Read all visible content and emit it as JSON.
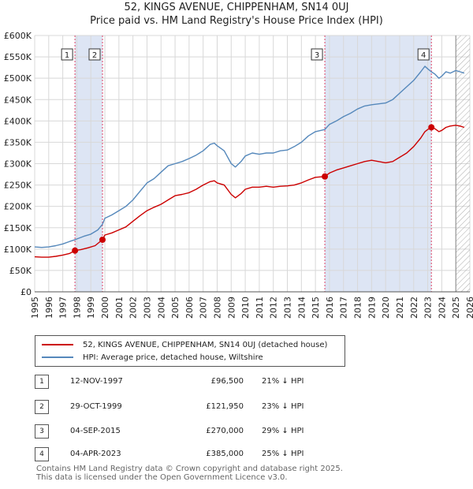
{
  "title_line1": "52, KINGS AVENUE, CHIPPENHAM, SN14 0UJ",
  "title_line2": "Price paid vs. HM Land Registry's House Price Index (HPI)",
  "colors": {
    "price_line": "#cc0000",
    "hpi_line": "#5588bb",
    "shade": "#dde5f4",
    "marker_line": "#dd4466",
    "hatch": "#aaaaaa"
  },
  "legend": {
    "price_label": "52, KINGS AVENUE, CHIPPENHAM, SN14 0UJ (detached house)",
    "hpi_label": "HPI: Average price, detached house, Wiltshire"
  },
  "transactions": [
    {
      "num": "1",
      "date": "12-NOV-1997",
      "price": "£96,500",
      "hpi": "21% ↓ HPI"
    },
    {
      "num": "2",
      "date": "29-OCT-1999",
      "price": "£121,950",
      "hpi": "23% ↓ HPI"
    },
    {
      "num": "3",
      "date": "04-SEP-2015",
      "price": "£270,000",
      "hpi": "29% ↓ HPI"
    },
    {
      "num": "4",
      "date": "04-APR-2023",
      "price": "£385,000",
      "hpi": "25% ↓ HPI"
    }
  ],
  "footer_line1": "Contains HM Land Registry data © Crown copyright and database right 2025.",
  "footer_line2": "This data is licensed under the Open Government Licence v3.0.",
  "chart_data": {
    "type": "line",
    "xlim": [
      1995,
      2026
    ],
    "ylim": [
      0,
      600000
    ],
    "yticks": [
      {
        "v": 0,
        "label": "£0"
      },
      {
        "v": 50000,
        "label": "£50K"
      },
      {
        "v": 100000,
        "label": "£100K"
      },
      {
        "v": 150000,
        "label": "£150K"
      },
      {
        "v": 200000,
        "label": "£200K"
      },
      {
        "v": 250000,
        "label": "£250K"
      },
      {
        "v": 300000,
        "label": "£300K"
      },
      {
        "v": 350000,
        "label": "£350K"
      },
      {
        "v": 400000,
        "label": "£400K"
      },
      {
        "v": 450000,
        "label": "£450K"
      },
      {
        "v": 500000,
        "label": "£500K"
      },
      {
        "v": 550000,
        "label": "£550K"
      },
      {
        "v": 600000,
        "label": "£600K"
      }
    ],
    "xticks": [
      "1995",
      "1996",
      "1997",
      "1998",
      "1999",
      "2000",
      "2001",
      "2002",
      "2003",
      "2004",
      "2005",
      "2006",
      "2007",
      "2008",
      "2009",
      "2010",
      "2011",
      "2012",
      "2013",
      "2014",
      "2015",
      "2016",
      "2017",
      "2018",
      "2019",
      "2020",
      "2021",
      "2022",
      "2023",
      "2024",
      "2025",
      "2026"
    ],
    "sales": [
      {
        "label": "1",
        "x": 1997.87,
        "y": 96500
      },
      {
        "label": "2",
        "x": 1999.83,
        "y": 121950
      },
      {
        "label": "3",
        "x": 2015.67,
        "y": 270000
      },
      {
        "label": "4",
        "x": 2023.26,
        "y": 385000
      }
    ],
    "shaded_ranges": [
      [
        1997.87,
        1999.83
      ],
      [
        2015.67,
        2023.26
      ]
    ],
    "future_from": 2025.0,
    "series": [
      {
        "name": "HPI: Average price, detached house, Wiltshire",
        "key": "hpi",
        "points": [
          [
            1995,
            105000
          ],
          [
            1995.5,
            104000
          ],
          [
            1996,
            105000
          ],
          [
            1996.5,
            108000
          ],
          [
            1997,
            112000
          ],
          [
            1997.5,
            118000
          ],
          [
            1997.87,
            122000
          ],
          [
            1998.5,
            130000
          ],
          [
            1999,
            135000
          ],
          [
            1999.5,
            145000
          ],
          [
            1999.83,
            158000
          ],
          [
            2000,
            172000
          ],
          [
            2000.5,
            180000
          ],
          [
            2001,
            190000
          ],
          [
            2001.5,
            200000
          ],
          [
            2002,
            215000
          ],
          [
            2002.5,
            235000
          ],
          [
            2003,
            255000
          ],
          [
            2003.5,
            265000
          ],
          [
            2004,
            280000
          ],
          [
            2004.5,
            295000
          ],
          [
            2005,
            300000
          ],
          [
            2005.5,
            305000
          ],
          [
            2006,
            312000
          ],
          [
            2006.5,
            320000
          ],
          [
            2007,
            330000
          ],
          [
            2007.5,
            345000
          ],
          [
            2007.8,
            348000
          ],
          [
            2008,
            342000
          ],
          [
            2008.5,
            330000
          ],
          [
            2009,
            300000
          ],
          [
            2009.3,
            292000
          ],
          [
            2009.7,
            305000
          ],
          [
            2010,
            318000
          ],
          [
            2010.5,
            325000
          ],
          [
            2011,
            322000
          ],
          [
            2011.5,
            325000
          ],
          [
            2012,
            325000
          ],
          [
            2012.5,
            330000
          ],
          [
            2013,
            332000
          ],
          [
            2013.5,
            340000
          ],
          [
            2014,
            350000
          ],
          [
            2014.5,
            365000
          ],
          [
            2015,
            375000
          ],
          [
            2015.67,
            380000
          ],
          [
            2016,
            392000
          ],
          [
            2016.5,
            400000
          ],
          [
            2017,
            410000
          ],
          [
            2017.5,
            418000
          ],
          [
            2018,
            428000
          ],
          [
            2018.5,
            435000
          ],
          [
            2019,
            438000
          ],
          [
            2019.5,
            440000
          ],
          [
            2020,
            442000
          ],
          [
            2020.5,
            450000
          ],
          [
            2021,
            465000
          ],
          [
            2021.5,
            480000
          ],
          [
            2022,
            495000
          ],
          [
            2022.5,
            515000
          ],
          [
            2022.8,
            528000
          ],
          [
            2023,
            522000
          ],
          [
            2023.26,
            515000
          ],
          [
            2023.5,
            510000
          ],
          [
            2023.8,
            500000
          ],
          [
            2024,
            505000
          ],
          [
            2024.3,
            515000
          ],
          [
            2024.6,
            512000
          ],
          [
            2025,
            518000
          ],
          [
            2025.3,
            515000
          ],
          [
            2025.6,
            512000
          ]
        ]
      },
      {
        "name": "52, KINGS AVENUE, CHIPPENHAM, SN14 0UJ (detached house)",
        "key": "price",
        "points": [
          [
            1995,
            82000
          ],
          [
            1995.5,
            81000
          ],
          [
            1996,
            81000
          ],
          [
            1996.5,
            83000
          ],
          [
            1997,
            86000
          ],
          [
            1997.5,
            90000
          ],
          [
            1997.87,
            96500
          ],
          [
            1998.3,
            99000
          ],
          [
            1998.8,
            103000
          ],
          [
            1999.3,
            108000
          ],
          [
            1999.83,
            121950
          ],
          [
            2000,
            133000
          ],
          [
            2000.5,
            138000
          ],
          [
            2001,
            145000
          ],
          [
            2001.5,
            152000
          ],
          [
            2002,
            165000
          ],
          [
            2002.5,
            178000
          ],
          [
            2003,
            190000
          ],
          [
            2003.5,
            198000
          ],
          [
            2004,
            205000
          ],
          [
            2004.5,
            215000
          ],
          [
            2005,
            225000
          ],
          [
            2005.5,
            228000
          ],
          [
            2006,
            232000
          ],
          [
            2006.5,
            240000
          ],
          [
            2007,
            250000
          ],
          [
            2007.5,
            258000
          ],
          [
            2007.8,
            260000
          ],
          [
            2008,
            255000
          ],
          [
            2008.5,
            250000
          ],
          [
            2009,
            228000
          ],
          [
            2009.3,
            220000
          ],
          [
            2009.7,
            230000
          ],
          [
            2010,
            240000
          ],
          [
            2010.5,
            245000
          ],
          [
            2011,
            245000
          ],
          [
            2011.5,
            247000
          ],
          [
            2012,
            245000
          ],
          [
            2012.5,
            247000
          ],
          [
            2013,
            248000
          ],
          [
            2013.5,
            250000
          ],
          [
            2014,
            255000
          ],
          [
            2014.5,
            262000
          ],
          [
            2015,
            268000
          ],
          [
            2015.67,
            270000
          ],
          [
            2016,
            278000
          ],
          [
            2016.5,
            285000
          ],
          [
            2017,
            290000
          ],
          [
            2017.5,
            295000
          ],
          [
            2018,
            300000
          ],
          [
            2018.5,
            305000
          ],
          [
            2019,
            308000
          ],
          [
            2019.5,
            305000
          ],
          [
            2020,
            302000
          ],
          [
            2020.5,
            305000
          ],
          [
            2021,
            315000
          ],
          [
            2021.5,
            325000
          ],
          [
            2022,
            340000
          ],
          [
            2022.5,
            360000
          ],
          [
            2022.8,
            375000
          ],
          [
            2023,
            380000
          ],
          [
            2023.26,
            385000
          ],
          [
            2023.5,
            382000
          ],
          [
            2023.8,
            375000
          ],
          [
            2024,
            378000
          ],
          [
            2024.3,
            385000
          ],
          [
            2024.6,
            388000
          ],
          [
            2025,
            390000
          ],
          [
            2025.3,
            388000
          ],
          [
            2025.6,
            385000
          ]
        ]
      }
    ]
  }
}
